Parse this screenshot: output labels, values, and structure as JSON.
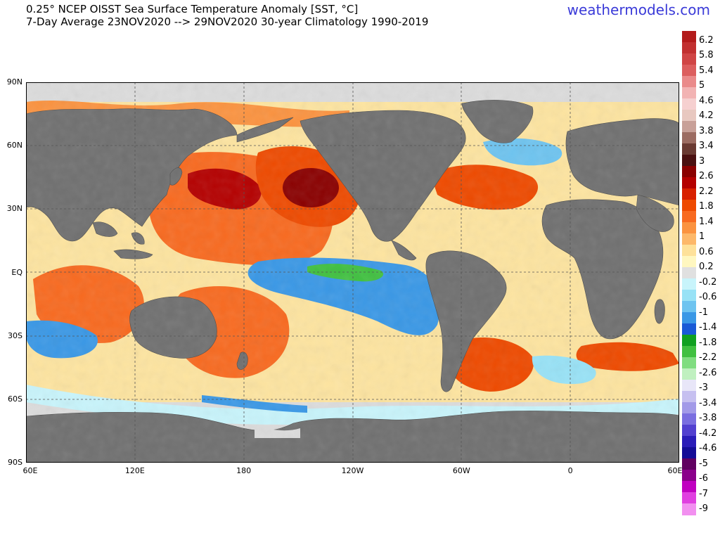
{
  "title_line1": "0.25° NCEP OISST Sea Surface Temperature Anomaly [SST, °C]",
  "title_line2": "7-Day Average 23NOV2020 --> 29NOV2020  30-year Climatology 1990-2019",
  "brand": "weathermodels.com",
  "lat_labels": [
    "90N",
    "60N",
    "30N",
    "EQ",
    "30S",
    "60S",
    "90S"
  ],
  "lon_labels": [
    "60E",
    "120E",
    "180",
    "120W",
    "60W",
    "0",
    "60E"
  ],
  "colorbar": {
    "labels": [
      "6.2",
      "5.8",
      "5.4",
      "5",
      "4.6",
      "4.2",
      "3.8",
      "3.4",
      "3",
      "2.6",
      "2.2",
      "1.8",
      "1.4",
      "1",
      "0.6",
      "0.2",
      "-0.2",
      "-0.6",
      "-1",
      "-1.4",
      "-1.8",
      "-2.2",
      "-2.6",
      "-3",
      "-3.4",
      "-3.8",
      "-4.2",
      "-4.6",
      "-5",
      "-6",
      "-7",
      "-9"
    ],
    "colors": [
      "#b31b1b",
      "#c23030",
      "#d04545",
      "#dc5e5e",
      "#ea8a8a",
      "#f2b3b3",
      "#f6d0d0",
      "#e8c8c0",
      "#c8a098",
      "#9c6c62",
      "#6a3a32",
      "#4a1010",
      "#8a0000",
      "#b40000",
      "#d82000",
      "#ee4a00",
      "#f86a20",
      "#fb9340",
      "#fdb86a",
      "#fee19a",
      "#fff7c0",
      "#e0e0e0",
      "#c8f4fb",
      "#98e2f6",
      "#6ec4f0",
      "#3a98e6",
      "#1a5ad6",
      "#10a020",
      "#40c040",
      "#80dd80",
      "#c0f0c0",
      "#e8e6f8",
      "#c6c0f0",
      "#a29ae8",
      "#7a6ee0",
      "#5240d0",
      "#2a1cb8",
      "#140c96",
      "#600060",
      "#8a008a",
      "#c000c0",
      "#e040e0",
      "#f290f0"
    ]
  },
  "land_color": "#707070",
  "neutral_color": "#dcdcdc"
}
